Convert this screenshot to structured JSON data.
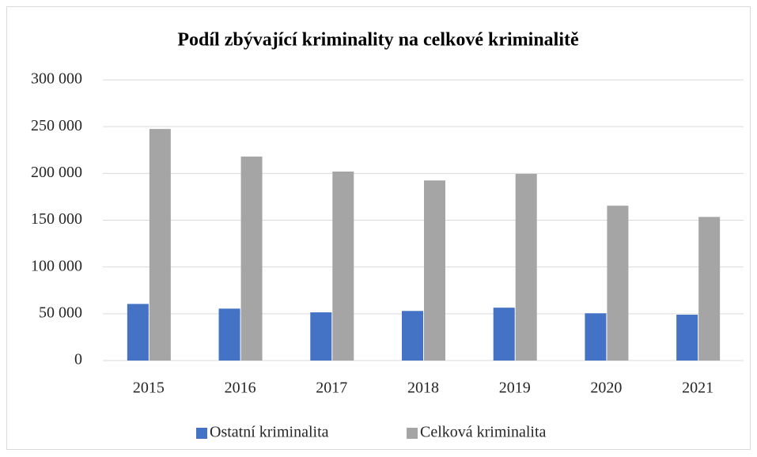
{
  "chart_data": {
    "type": "bar",
    "title": "Podíl zbývající kriminality na celkové kriminalitě",
    "categories": [
      "2015",
      "2016",
      "2017",
      "2018",
      "2019",
      "2020",
      "2021"
    ],
    "series": [
      {
        "name": "Ostatní kriminalita",
        "color": "#4472c4",
        "values": [
          60500,
          55500,
          51500,
          53000,
          56500,
          50500,
          49000
        ]
      },
      {
        "name": "Celková kriminalita",
        "color": "#a5a5a5",
        "values": [
          247500,
          218000,
          202000,
          192500,
          199500,
          165500,
          153500
        ]
      }
    ],
    "ylim": [
      0,
      300000
    ],
    "yticks": [
      0,
      {
        "value": 50000,
        "label": "50 000"
      },
      {
        "value": 100000,
        "label": "100 000"
      },
      {
        "value": 150000,
        "label": "150 000"
      },
      {
        "value": 200000,
        "label": "200 000"
      },
      {
        "value": 250000,
        "label": "250 000"
      },
      {
        "value": 300000,
        "label": "300 000"
      }
    ],
    "grid": true,
    "legend": "bottom"
  }
}
